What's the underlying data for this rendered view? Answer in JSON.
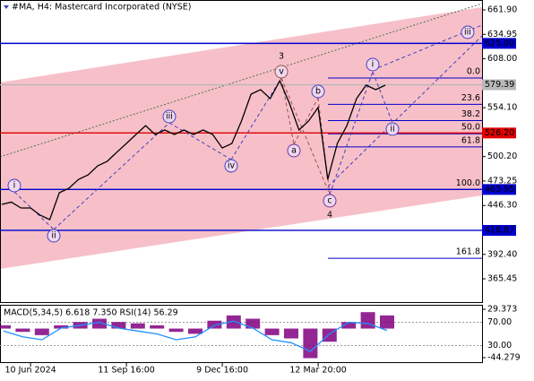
{
  "chart_data": [
    {
      "type": "line",
      "title": "#MA, H4:  Mastercard Incorporated (NYSE)",
      "categories": [
        null,
        null,
        null,
        "10 Jun 2024",
        null,
        null,
        null,
        null,
        null,
        null,
        null,
        null,
        null,
        "11 Sep 16:00",
        null,
        null,
        null,
        null,
        null,
        null,
        null,
        null,
        null,
        "9 Dec 16:00",
        null,
        null,
        null,
        null,
        null,
        null,
        null,
        null,
        null,
        "12 Mar 20:00",
        null,
        null,
        null,
        null,
        null,
        null,
        null
      ],
      "series": [
        {
          "color": "#000000",
          "values": [
            447.5,
            450,
            443.5,
            443.5,
            435.6,
            430.7,
            460.3,
            465.3,
            475,
            480,
            490,
            495,
            505,
            514.7,
            524.6,
            534.4,
            524.6,
            529.5,
            524.6,
            529.5,
            524.6,
            529.5,
            524.6,
            509.7,
            514.7,
            539.4,
            569,
            574,
            564.1,
            583.8,
            559.1,
            529.5,
            539.4,
            554.3,
            475.1,
            514.7,
            534.4,
            564.1,
            578.9,
            574,
            578.9
          ]
        }
      ],
      "ylim": [
        338.8,
        672.8
      ],
      "yticks": [
        {
          "value": 661.9,
          "label": "661.90"
        },
        {
          "value": 634.95,
          "label": "634.95"
        },
        {
          "value": 608,
          "label": "608.00"
        },
        {
          "value": 554.1,
          "label": "554.10"
        },
        {
          "value": 500.2,
          "label": "500.20"
        },
        {
          "value": 473.25,
          "label": "473.25"
        },
        {
          "value": 446.3,
          "label": "446.30"
        },
        {
          "value": 392.4,
          "label": "392.40"
        },
        {
          "value": 365.45,
          "label": "365.45"
        }
      ],
      "levels": [
        {
          "value": 625,
          "label": "625.00",
          "color": "#0000cd"
        },
        {
          "value": 579.39,
          "label": "579.39",
          "color": "#b8b8b8"
        },
        {
          "value": 526.2,
          "label": "526.20",
          "color": "#e00000"
        },
        {
          "value": 463.95,
          "label": "463.95",
          "color": "#0000cd"
        },
        {
          "value": 418.87,
          "label": "418.87",
          "color": "#0000cd"
        }
      ],
      "fibonacci": {
        "high": 586.8,
        "low": 463.95,
        "color": "#0000cd",
        "levels": [
          {
            "value": 0,
            "label": "0.0"
          },
          {
            "value": 23.6,
            "label": "23.6"
          },
          {
            "value": 38.2,
            "label": "38.2"
          },
          {
            "value": 50,
            "label": "50.0"
          },
          {
            "value": 61.8,
            "label": "61.8"
          },
          {
            "value": 100,
            "label": "100.0"
          },
          {
            "value": 161.8,
            "label": "161.8"
          }
        ]
      },
      "annotations": [
        {
          "text": "i",
          "color": "#4040c0"
        },
        {
          "text": "ii",
          "color": "#4040c0"
        },
        {
          "text": "iii",
          "color": "#4040c0"
        },
        {
          "text": "iv",
          "color": "#4040c0"
        },
        {
          "text": "v",
          "color": "#a05050"
        },
        {
          "text": "a",
          "color": "#7030a0"
        },
        {
          "text": "b",
          "color": "#4040c0"
        },
        {
          "text": "c",
          "color": "#7030a0"
        },
        {
          "text": "i",
          "color": "#4040c0"
        },
        {
          "text": "ii",
          "color": "#4040c0"
        },
        {
          "text": "iii",
          "color": "#4040c0"
        },
        {
          "text": "3",
          "color": "#a05050"
        },
        {
          "text": "4",
          "color": "#a05050"
        }
      ]
    },
    {
      "type": "bar",
      "title": "MACD(5,34,5) 6.618 7.350 RSI(14) 56.29",
      "series": [
        {
          "color": "#800080",
          "values": [
            5,
            -5,
            -10,
            5,
            10,
            15,
            10,
            8,
            5,
            -5,
            -8,
            12,
            20,
            15,
            -10,
            -15,
            -45,
            -20,
            10,
            25,
            20
          ]
        },
        {
          "color": "#1e90ff",
          "axis": "y2",
          "values": [
            55,
            45,
            40,
            60,
            65,
            70,
            60,
            55,
            50,
            40,
            45,
            65,
            72,
            60,
            40,
            35,
            20,
            50,
            70,
            68,
            56
          ]
        }
      ],
      "ylim": [
        -52.5,
        36.2
      ],
      "yticks": [
        {
          "value": 29.373,
          "label": "29.373"
        },
        {
          "value": -44.279,
          "label": "-44.279"
        }
      ],
      "y2lim": [
        0,
        100
      ],
      "y2ticks": [
        {
          "value": 70,
          "label": "70.00"
        },
        {
          "value": 30,
          "label": "30.00"
        }
      ]
    }
  ]
}
